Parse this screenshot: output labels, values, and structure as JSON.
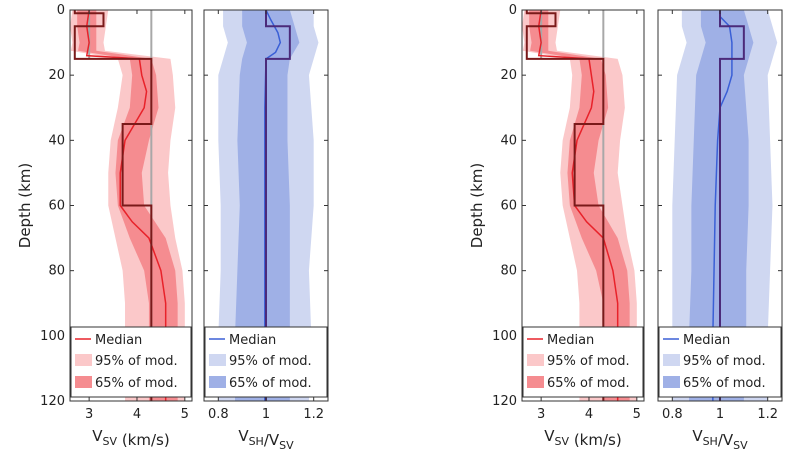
{
  "ylabel": "Depth (km)",
  "depth_ticks": [
    "0",
    "20",
    "40",
    "60",
    "80",
    "100",
    "120"
  ],
  "vsv_ticks": [
    "3",
    "4",
    "5"
  ],
  "xi_ticks": [
    "0.8",
    "1",
    "1.2"
  ],
  "vsv_xlabel": "V_SV (km/s)",
  "xi_xlabel": "V_SH/V_SV",
  "legend": {
    "median": "Median",
    "p95": "95% of mod.",
    "p65": "65% of mod."
  },
  "colors": {
    "vsv_line": "#e8222a",
    "vsv_95": "#fbc8c9",
    "vsv_65": "#f58c90",
    "true_model": "#7a1a1a",
    "ref_gray": "#a8a8a8",
    "xi_line": "#3a5fd6",
    "xi_95": "#cfd7f1",
    "xi_65": "#9fb0e6",
    "xi_true": "#4b2a7a"
  },
  "chart_data": [
    {
      "type": "area",
      "panel": "left-vsv",
      "xlabel": "V_SV (km/s)",
      "ylabel": "Depth (km)",
      "xlim": [
        2.6,
        5.15
      ],
      "ylim": [
        0,
        120
      ],
      "reference_line": 4.3,
      "true_model": [
        [
          2.7,
          0
        ],
        [
          2.7,
          1
        ],
        [
          3.3,
          1
        ],
        [
          3.3,
          5
        ],
        [
          2.7,
          5
        ],
        [
          2.7,
          15
        ],
        [
          4.3,
          15
        ],
        [
          4.3,
          35
        ],
        [
          3.7,
          35
        ],
        [
          3.7,
          60
        ],
        [
          4.3,
          60
        ],
        [
          4.3,
          120
        ]
      ],
      "median": [
        [
          3.0,
          0
        ],
        [
          2.95,
          5
        ],
        [
          3.0,
          10
        ],
        [
          2.95,
          14
        ],
        [
          4.05,
          15
        ],
        [
          4.1,
          20
        ],
        [
          4.2,
          25
        ],
        [
          4.15,
          30
        ],
        [
          3.95,
          35
        ],
        [
          3.75,
          40
        ],
        [
          3.65,
          50
        ],
        [
          3.65,
          60
        ],
        [
          3.9,
          65
        ],
        [
          4.25,
          70
        ],
        [
          4.5,
          80
        ],
        [
          4.6,
          90
        ],
        [
          4.6,
          100
        ],
        [
          4.6,
          110
        ],
        [
          4.6,
          120
        ]
      ],
      "band95": {
        "depth": [
          0,
          5,
          10,
          14,
          15,
          20,
          30,
          40,
          50,
          60,
          70,
          80,
          90,
          100,
          110,
          120
        ],
        "lo": [
          2.65,
          2.6,
          2.65,
          2.6,
          3.6,
          3.7,
          3.6,
          3.45,
          3.4,
          3.4,
          3.55,
          3.7,
          3.75,
          3.75,
          3.75,
          3.75
        ],
        "hi": [
          3.4,
          3.35,
          3.3,
          3.35,
          4.7,
          4.75,
          4.8,
          4.7,
          4.65,
          4.7,
          4.8,
          4.95,
          5.0,
          5.0,
          5.0,
          5.0
        ]
      },
      "band65": {
        "depth": [
          0,
          5,
          10,
          14,
          15,
          20,
          30,
          40,
          50,
          60,
          70,
          80,
          90,
          100,
          110,
          120
        ],
        "lo": [
          2.75,
          2.75,
          2.8,
          2.75,
          3.85,
          3.9,
          3.85,
          3.6,
          3.55,
          3.6,
          3.85,
          4.15,
          4.25,
          4.25,
          4.25,
          4.25
        ],
        "hi": [
          3.15,
          3.15,
          3.15,
          3.15,
          4.3,
          4.4,
          4.45,
          4.25,
          4.1,
          4.15,
          4.6,
          4.8,
          4.85,
          4.85,
          4.85,
          4.85
        ]
      }
    },
    {
      "type": "area",
      "panel": "left-xi",
      "xlabel": "V_SH/V_SV",
      "xlim": [
        0.74,
        1.26
      ],
      "ylim": [
        0,
        120
      ],
      "true_model": [
        [
          1,
          0
        ],
        [
          1,
          5
        ],
        [
          1.1,
          5
        ],
        [
          1.1,
          15
        ],
        [
          1,
          15
        ],
        [
          1,
          120
        ]
      ],
      "median": [
        [
          1,
          0
        ],
        [
          1.02,
          3
        ],
        [
          1.05,
          7
        ],
        [
          1.06,
          10
        ],
        [
          1.04,
          13
        ],
        [
          1.0,
          15
        ],
        [
          0.995,
          30
        ],
        [
          0.995,
          60
        ],
        [
          0.995,
          90
        ],
        [
          0.995,
          120
        ]
      ],
      "band95": {
        "depth": [
          0,
          5,
          10,
          15,
          20,
          40,
          60,
          80,
          100,
          120
        ],
        "lo": [
          0.82,
          0.82,
          0.84,
          0.82,
          0.8,
          0.8,
          0.81,
          0.81,
          0.8,
          0.8
        ],
        "hi": [
          1.2,
          1.2,
          1.22,
          1.2,
          1.18,
          1.2,
          1.2,
          1.18,
          1.19,
          1.18
        ]
      },
      "band65": {
        "depth": [
          0,
          5,
          10,
          15,
          20,
          40,
          60,
          80,
          100,
          120
        ],
        "lo": [
          0.9,
          0.9,
          0.92,
          0.9,
          0.89,
          0.88,
          0.89,
          0.88,
          0.87,
          0.87
        ],
        "hi": [
          1.1,
          1.12,
          1.14,
          1.1,
          1.09,
          1.09,
          1.1,
          1.1,
          1.1,
          1.1
        ]
      }
    },
    {
      "type": "area",
      "panel": "right-vsv",
      "xlabel": "V_SV (km/s)",
      "ylabel": "Depth (km)",
      "xlim": [
        2.6,
        5.15
      ],
      "ylim": [
        0,
        120
      ],
      "reference_line": 4.3,
      "true_model": [
        [
          2.7,
          0
        ],
        [
          2.7,
          1
        ],
        [
          3.3,
          1
        ],
        [
          3.3,
          5
        ],
        [
          2.7,
          5
        ],
        [
          2.7,
          15
        ],
        [
          4.3,
          15
        ],
        [
          4.3,
          35
        ],
        [
          3.7,
          35
        ],
        [
          3.7,
          60
        ],
        [
          4.3,
          60
        ],
        [
          4.3,
          120
        ]
      ],
      "median": [
        [
          3.0,
          0
        ],
        [
          2.95,
          5
        ],
        [
          3.0,
          10
        ],
        [
          2.95,
          14
        ],
        [
          4.0,
          15
        ],
        [
          4.05,
          20
        ],
        [
          4.1,
          25
        ],
        [
          4.05,
          30
        ],
        [
          3.9,
          35
        ],
        [
          3.75,
          40
        ],
        [
          3.65,
          50
        ],
        [
          3.7,
          60
        ],
        [
          3.95,
          65
        ],
        [
          4.3,
          70
        ],
        [
          4.5,
          80
        ],
        [
          4.6,
          90
        ],
        [
          4.6,
          100
        ],
        [
          4.6,
          110
        ],
        [
          4.6,
          120
        ]
      ],
      "band95": {
        "depth": [
          0,
          5,
          10,
          14,
          15,
          20,
          30,
          40,
          50,
          60,
          70,
          80,
          90,
          100,
          110,
          120
        ],
        "lo": [
          2.65,
          2.6,
          2.65,
          2.6,
          3.6,
          3.65,
          3.6,
          3.45,
          3.4,
          3.45,
          3.6,
          3.75,
          3.8,
          3.8,
          3.8,
          3.8
        ],
        "hi": [
          3.4,
          3.35,
          3.3,
          3.35,
          4.6,
          4.7,
          4.75,
          4.65,
          4.6,
          4.7,
          4.8,
          4.95,
          5.0,
          5.0,
          5.0,
          5.0
        ]
      },
      "band65": {
        "depth": [
          0,
          5,
          10,
          14,
          15,
          20,
          30,
          40,
          50,
          60,
          70,
          80,
          90,
          100,
          110,
          120
        ],
        "lo": [
          2.75,
          2.75,
          2.8,
          2.75,
          3.8,
          3.85,
          3.8,
          3.6,
          3.55,
          3.6,
          3.85,
          4.15,
          4.3,
          4.3,
          4.3,
          4.3
        ],
        "hi": [
          3.15,
          3.15,
          3.15,
          3.15,
          4.25,
          4.35,
          4.4,
          4.2,
          4.1,
          4.2,
          4.6,
          4.8,
          4.85,
          4.85,
          4.85,
          4.85
        ]
      }
    },
    {
      "type": "area",
      "panel": "right-xi",
      "xlabel": "V_SH/V_SV",
      "xlim": [
        0.74,
        1.26
      ],
      "ylim": [
        0,
        120
      ],
      "true_model": [
        [
          1,
          0
        ],
        [
          1,
          5
        ],
        [
          1.1,
          5
        ],
        [
          1.1,
          15
        ],
        [
          1,
          15
        ],
        [
          1,
          120
        ]
      ],
      "median": [
        [
          1,
          0
        ],
        [
          1.0,
          2
        ],
        [
          1.04,
          5
        ],
        [
          1.05,
          10
        ],
        [
          1.05,
          15
        ],
        [
          1.05,
          20
        ],
        [
          1.03,
          25
        ],
        [
          1.0,
          30
        ],
        [
          0.99,
          40
        ],
        [
          0.98,
          60
        ],
        [
          0.975,
          80
        ],
        [
          0.97,
          100
        ],
        [
          0.97,
          120
        ]
      ],
      "band95": {
        "depth": [
          0,
          5,
          10,
          15,
          20,
          40,
          60,
          80,
          100,
          120
        ],
        "lo": [
          0.84,
          0.84,
          0.86,
          0.84,
          0.82,
          0.81,
          0.8,
          0.8,
          0.8,
          0.8
        ],
        "hi": [
          1.2,
          1.22,
          1.24,
          1.22,
          1.2,
          1.21,
          1.22,
          1.21,
          1.2,
          1.2
        ]
      },
      "band65": {
        "depth": [
          0,
          5,
          10,
          15,
          20,
          40,
          60,
          80,
          100,
          120
        ],
        "lo": [
          0.92,
          0.92,
          0.94,
          0.92,
          0.9,
          0.89,
          0.88,
          0.88,
          0.87,
          0.87
        ],
        "hi": [
          1.1,
          1.12,
          1.14,
          1.12,
          1.1,
          1.12,
          1.12,
          1.11,
          1.11,
          1.1
        ]
      }
    }
  ]
}
